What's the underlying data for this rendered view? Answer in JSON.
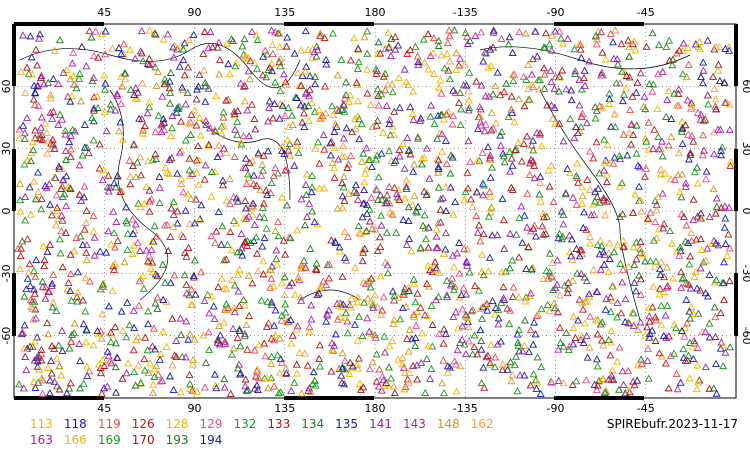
{
  "map": {
    "type": "scatter-map",
    "projection": "cylindrical-equidistant",
    "central_longitude": 180,
    "lon_range": [
      0,
      360
    ],
    "lat_range": [
      -90,
      90
    ],
    "top_lon_labels": [
      "45",
      "90",
      "135",
      "180",
      "-135",
      "-90",
      "-45"
    ],
    "bottom_lon_labels": [
      "45",
      "90",
      "135",
      "180",
      "-135",
      "-90",
      "-45"
    ],
    "left_lat_labels": [
      "60",
      "30",
      "0",
      "-30",
      "-60"
    ],
    "right_lat_labels": [
      "60",
      "30",
      "0",
      "-30",
      "-60"
    ],
    "marker": "triangle-outline",
    "coastline_color": "#000000"
  },
  "legend": {
    "row1": [
      {
        "label": "113",
        "color": "#f2b400"
      },
      {
        "label": "118",
        "color": "#1a1ab0"
      },
      {
        "label": "119",
        "color": "#e64a4a"
      },
      {
        "label": "126",
        "color": "#c01818"
      },
      {
        "label": "128",
        "color": "#f2b400"
      },
      {
        "label": "129",
        "color": "#e84a8a"
      },
      {
        "label": "132",
        "color": "#1a9a1a"
      },
      {
        "label": "133",
        "color": "#a01818"
      },
      {
        "label": "134",
        "color": "#1a8a1a"
      },
      {
        "label": "135",
        "color": "#1a1ab0"
      },
      {
        "label": "141",
        "color": "#a020a0"
      },
      {
        "label": "143",
        "color": "#a020c0"
      },
      {
        "label": "148",
        "color": "#c89a20"
      },
      {
        "label": "162",
        "color": "#f2a040"
      }
    ],
    "row2": [
      {
        "label": "163",
        "color": "#a020a0"
      },
      {
        "label": "166",
        "color": "#f2b400"
      },
      {
        "label": "169",
        "color": "#1a9a1a"
      },
      {
        "label": "170",
        "color": "#a01818"
      },
      {
        "label": "193",
        "color": "#1a7a1a"
      },
      {
        "label": "194",
        "color": "#1a1a9a"
      }
    ]
  },
  "source": "SPIREbufr.2023-11-17"
}
